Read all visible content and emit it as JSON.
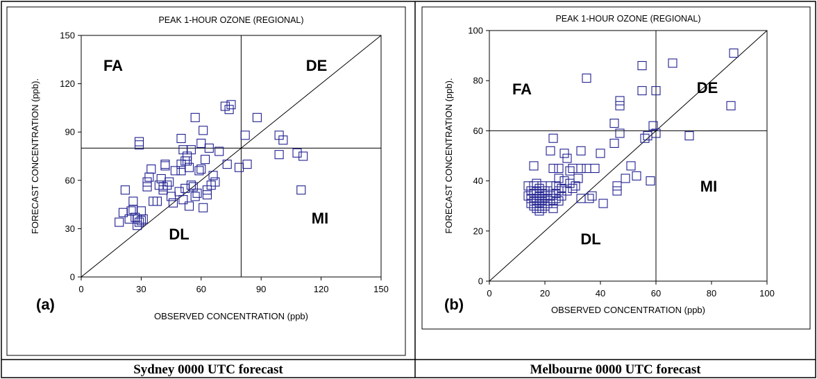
{
  "captions": [
    "Sydney 0000 UTC forecast",
    "Melbourne 0000 UTC forecast"
  ],
  "chart_data": [
    {
      "type": "scatter",
      "panel_label": "(a)",
      "title": "PEAK 1-HOUR OZONE (REGIONAL)",
      "xlabel": "OBSERVED CONCENTRATION (ppb)",
      "ylabel": "FORECAST CONCENTRATION (ppb).",
      "xlim": [
        0,
        150
      ],
      "ylim": [
        0,
        150
      ],
      "xticks": [
        0,
        30,
        60,
        90,
        120,
        150
      ],
      "yticks": [
        0,
        30,
        60,
        90,
        120,
        150
      ],
      "threshold": 80,
      "quadrant_labels": [
        "FA",
        "DE",
        "DL",
        "MI"
      ],
      "marker_color": "#1f1f8f",
      "points": [
        [
          19,
          34
        ],
        [
          21,
          40
        ],
        [
          22,
          54
        ],
        [
          24,
          36
        ],
        [
          25,
          41
        ],
        [
          26,
          42
        ],
        [
          26,
          47
        ],
        [
          27,
          37
        ],
        [
          28,
          32
        ],
        [
          28,
          36
        ],
        [
          29,
          34
        ],
        [
          29,
          82
        ],
        [
          29,
          84
        ],
        [
          30,
          35
        ],
        [
          30,
          41
        ],
        [
          31,
          36
        ],
        [
          33,
          56
        ],
        [
          33,
          59
        ],
        [
          34,
          62
        ],
        [
          35,
          67
        ],
        [
          36,
          47
        ],
        [
          38,
          47
        ],
        [
          39,
          57
        ],
        [
          40,
          61
        ],
        [
          41,
          54
        ],
        [
          41,
          56
        ],
        [
          42,
          69
        ],
        [
          42,
          70
        ],
        [
          43,
          57
        ],
        [
          44,
          59
        ],
        [
          45,
          50
        ],
        [
          46,
          46
        ],
        [
          47,
          66
        ],
        [
          49,
          53
        ],
        [
          50,
          66
        ],
        [
          50,
          70
        ],
        [
          50,
          86
        ],
        [
          51,
          48
        ],
        [
          51,
          79
        ],
        [
          52,
          55
        ],
        [
          52,
          72
        ],
        [
          53,
          72
        ],
        [
          53,
          75
        ],
        [
          54,
          44
        ],
        [
          54,
          68
        ],
        [
          55,
          57
        ],
        [
          55,
          79
        ],
        [
          56,
          56
        ],
        [
          57,
          50
        ],
        [
          57,
          99
        ],
        [
          58,
          52
        ],
        [
          59,
          66
        ],
        [
          60,
          67
        ],
        [
          60,
          83
        ],
        [
          61,
          43
        ],
        [
          61,
          91
        ],
        [
          62,
          73
        ],
        [
          63,
          51
        ],
        [
          63,
          54
        ],
        [
          64,
          80
        ],
        [
          65,
          57
        ],
        [
          66,
          63
        ],
        [
          67,
          59
        ],
        [
          69,
          78
        ],
        [
          72,
          106
        ],
        [
          73,
          70
        ],
        [
          74,
          104
        ],
        [
          75,
          107
        ],
        [
          79,
          68
        ],
        [
          82,
          88
        ],
        [
          83,
          70
        ],
        [
          88,
          99
        ],
        [
          99,
          76
        ],
        [
          99,
          88
        ],
        [
          101,
          85
        ],
        [
          108,
          77
        ],
        [
          110,
          54
        ],
        [
          111,
          75
        ]
      ]
    },
    {
      "type": "scatter",
      "panel_label": "(b)",
      "title": "PEAK 1-HOUR OZONE (REGIONAL)",
      "xlabel": "OBSERVED CONCENTRATION (ppb)",
      "ylabel": "FORECAST CONCENTRATION (ppb).",
      "xlim": [
        0,
        100
      ],
      "ylim": [
        0,
        100
      ],
      "xticks": [
        0,
        20,
        40,
        60,
        80,
        100
      ],
      "yticks": [
        0,
        20,
        40,
        60,
        80,
        100
      ],
      "threshold": 60,
      "quadrant_labels": [
        "FA",
        "DE",
        "DL",
        "MI"
      ],
      "marker_color": "#1f1f8f",
      "points": [
        [
          14,
          34
        ],
        [
          14,
          38
        ],
        [
          15,
          31
        ],
        [
          15,
          33
        ],
        [
          15,
          36
        ],
        [
          16,
          30
        ],
        [
          16,
          32
        ],
        [
          16,
          35
        ],
        [
          16,
          38
        ],
        [
          16,
          46
        ],
        [
          17,
          29
        ],
        [
          17,
          31
        ],
        [
          17,
          33
        ],
        [
          17,
          36
        ],
        [
          17,
          39
        ],
        [
          18,
          28
        ],
        [
          18,
          30
        ],
        [
          18,
          32
        ],
        [
          18,
          34
        ],
        [
          18,
          37
        ],
        [
          19,
          29
        ],
        [
          19,
          31
        ],
        [
          19,
          33
        ],
        [
          19,
          35
        ],
        [
          19,
          38
        ],
        [
          20,
          30
        ],
        [
          20,
          32
        ],
        [
          20,
          34
        ],
        [
          20,
          36
        ],
        [
          21,
          31
        ],
        [
          21,
          33
        ],
        [
          21,
          36
        ],
        [
          22,
          32
        ],
        [
          22,
          34
        ],
        [
          22,
          38
        ],
        [
          22,
          52
        ],
        [
          23,
          29
        ],
        [
          23,
          31
        ],
        [
          23,
          45
        ],
        [
          23,
          57
        ],
        [
          24,
          33
        ],
        [
          24,
          35
        ],
        [
          24,
          38
        ],
        [
          25,
          32
        ],
        [
          25,
          36
        ],
        [
          25,
          41
        ],
        [
          25,
          45
        ],
        [
          26,
          34
        ],
        [
          26,
          37
        ],
        [
          27,
          40
        ],
        [
          27,
          51
        ],
        [
          28,
          36
        ],
        [
          28,
          49
        ],
        [
          29,
          39
        ],
        [
          29,
          44
        ],
        [
          30,
          37
        ],
        [
          30,
          45
        ],
        [
          31,
          38
        ],
        [
          32,
          41
        ],
        [
          33,
          33
        ],
        [
          33,
          45
        ],
        [
          33,
          52
        ],
        [
          35,
          45
        ],
        [
          35,
          81
        ],
        [
          36,
          33
        ],
        [
          37,
          34
        ],
        [
          38,
          45
        ],
        [
          40,
          51
        ],
        [
          41,
          31
        ],
        [
          45,
          63
        ],
        [
          45,
          55
        ],
        [
          46,
          36
        ],
        [
          46,
          38
        ],
        [
          47,
          59
        ],
        [
          47,
          70
        ],
        [
          47,
          72
        ],
        [
          49,
          41
        ],
        [
          51,
          46
        ],
        [
          53,
          42
        ],
        [
          55,
          76
        ],
        [
          55,
          86
        ],
        [
          56,
          57
        ],
        [
          57,
          58
        ],
        [
          58,
          40
        ],
        [
          59,
          62
        ],
        [
          60,
          59
        ],
        [
          60,
          76
        ],
        [
          66,
          87
        ],
        [
          72,
          58
        ],
        [
          87,
          70
        ],
        [
          88,
          91
        ]
      ]
    }
  ]
}
